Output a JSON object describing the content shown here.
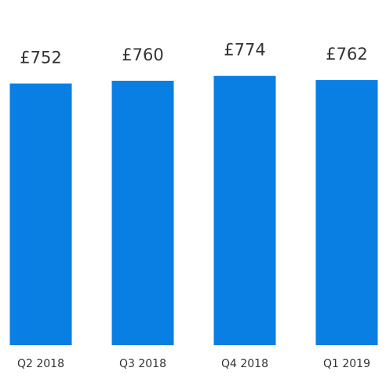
{
  "chart_data": {
    "type": "bar",
    "categories": [
      "Q2 2018",
      "Q3 2018",
      "Q4 2018",
      "Q1 2019"
    ],
    "values": [
      752,
      760,
      774,
      762
    ],
    "value_labels": [
      "£752",
      "£760",
      "£774",
      "£762"
    ],
    "color": "#0a7fe3"
  }
}
